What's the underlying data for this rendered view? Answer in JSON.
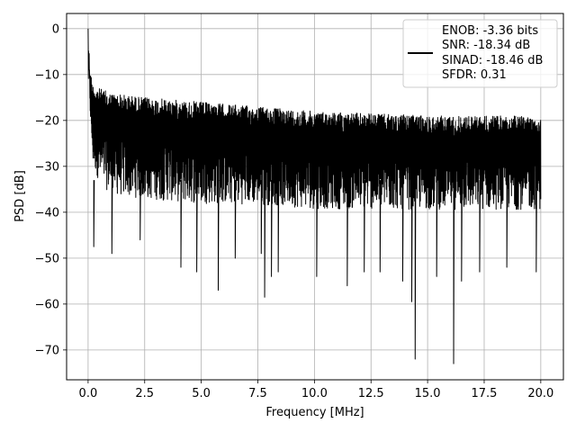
{
  "chart_data": {
    "type": "line",
    "xlabel": "Frequency [MHz]",
    "ylabel": "PSD [dB]",
    "xlim": [
      -0.95,
      21.0
    ],
    "ylim": [
      -76.5,
      3.3
    ],
    "x_ticks": [
      0.0,
      2.5,
      5.0,
      7.5,
      10.0,
      12.5,
      15.0,
      17.5,
      20.0
    ],
    "x_tick_labels": [
      "0.0",
      "2.5",
      "5.0",
      "7.5",
      "10.0",
      "12.5",
      "15.0",
      "17.5",
      "20.0"
    ],
    "y_ticks": [
      0,
      -10,
      -20,
      -30,
      -40,
      -50,
      -60,
      -70
    ],
    "y_tick_labels": [
      "0",
      "−10",
      "−20",
      "−30",
      "−40",
      "−50",
      "−60",
      "−70"
    ],
    "grid": true,
    "legend_position": "top-right",
    "line_color": "#000000",
    "series": [
      {
        "name": "ENOB: -3.36 bits SNR: -18.34 dB SINAD: -18.46 dB SFDR: 0.31",
        "legend_lines": [
          "ENOB: -3.36 bits",
          "SNR: -18.34 dB",
          "SINAD: -18.46 dB",
          "SFDR: 0.31"
        ],
        "envelope_points": [
          {
            "x": 0.0,
            "upper": 0.0,
            "lower": -25
          },
          {
            "x": 0.02,
            "upper": -2,
            "lower": -10
          },
          {
            "x": 0.05,
            "upper": -5,
            "lower": -14
          },
          {
            "x": 0.1,
            "upper": -9,
            "lower": -22
          },
          {
            "x": 0.2,
            "upper": -12,
            "lower": -33
          },
          {
            "x": 0.5,
            "upper": -13,
            "lower": -37
          },
          {
            "x": 1.0,
            "upper": -14,
            "lower": -40
          },
          {
            "x": 2.5,
            "upper": -15,
            "lower": -41
          },
          {
            "x": 5.0,
            "upper": -16,
            "lower": -42
          },
          {
            "x": 7.5,
            "upper": -17,
            "lower": -42
          },
          {
            "x": 10.0,
            "upper": -18,
            "lower": -43
          },
          {
            "x": 12.5,
            "upper": -18.5,
            "lower": -43
          },
          {
            "x": 15.0,
            "upper": -19,
            "lower": -43
          },
          {
            "x": 17.5,
            "upper": -19,
            "lower": -43
          },
          {
            "x": 20.0,
            "upper": -19,
            "lower": -43
          }
        ],
        "deep_dips": [
          {
            "x": 0.25,
            "y": -47.5
          },
          {
            "x": 1.05,
            "y": -49
          },
          {
            "x": 2.3,
            "y": -46
          },
          {
            "x": 4.1,
            "y": -52
          },
          {
            "x": 4.8,
            "y": -53
          },
          {
            "x": 5.75,
            "y": -57
          },
          {
            "x": 6.5,
            "y": -50
          },
          {
            "x": 7.65,
            "y": -49
          },
          {
            "x": 7.8,
            "y": -58.5
          },
          {
            "x": 8.1,
            "y": -54
          },
          {
            "x": 8.4,
            "y": -53
          },
          {
            "x": 10.1,
            "y": -54
          },
          {
            "x": 11.45,
            "y": -56
          },
          {
            "x": 12.2,
            "y": -53
          },
          {
            "x": 12.9,
            "y": -53
          },
          {
            "x": 13.9,
            "y": -55
          },
          {
            "x": 14.3,
            "y": -59.5
          },
          {
            "x": 14.45,
            "y": -72
          },
          {
            "x": 15.4,
            "y": -54
          },
          {
            "x": 16.15,
            "y": -73
          },
          {
            "x": 16.5,
            "y": -55
          },
          {
            "x": 17.3,
            "y": -53
          },
          {
            "x": 18.5,
            "y": -52
          },
          {
            "x": 19.8,
            "y": -53
          }
        ]
      }
    ]
  }
}
